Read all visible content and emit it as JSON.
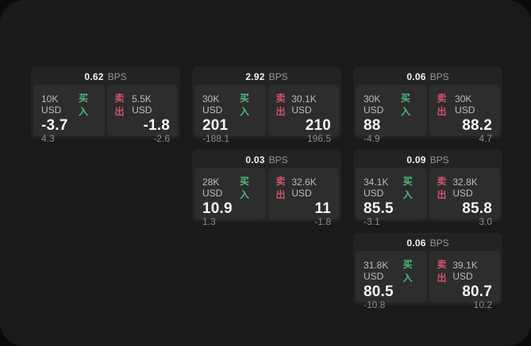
{
  "labels": {
    "bps": "BPS",
    "buy": "买入",
    "sell": "卖出"
  },
  "colors": {
    "buy": "#4bbd78",
    "sell": "#d4536a",
    "panel_bg": "#1a1a1b",
    "card_bg": "#232324",
    "tile_bg": "#2d2d2e",
    "page_bg": "#0a0a0b"
  },
  "cards": [
    {
      "col": 1,
      "row": 1,
      "spread_bps": "0.62",
      "buy": {
        "size": "10K USD",
        "price": "-3.7",
        "delta": "4.3"
      },
      "sell": {
        "size": "5.5K USD",
        "price": "-1.8",
        "delta": "-2.6"
      }
    },
    {
      "col": 2,
      "row": 1,
      "spread_bps": "2.92",
      "buy": {
        "size": "30K USD",
        "price": "201",
        "delta": "-188.1"
      },
      "sell": {
        "size": "30.1K USD",
        "price": "210",
        "delta": "196.5"
      }
    },
    {
      "col": 3,
      "row": 1,
      "spread_bps": "0.06",
      "buy": {
        "size": "30K USD",
        "price": "88",
        "delta": "-4.9"
      },
      "sell": {
        "size": "30K USD",
        "price": "88.2",
        "delta": "4.7"
      }
    },
    {
      "col": 2,
      "row": 2,
      "spread_bps": "0.03",
      "buy": {
        "size": "28K USD",
        "price": "10.9",
        "delta": "1.3"
      },
      "sell": {
        "size": "32.6K USD",
        "price": "11",
        "delta": "-1.8"
      }
    },
    {
      "col": 3,
      "row": 2,
      "spread_bps": "0.09",
      "buy": {
        "size": "34.1K USD",
        "price": "85.5",
        "delta": "-3.1"
      },
      "sell": {
        "size": "32.8K USD",
        "price": "85.8",
        "delta": "3.0"
      }
    },
    {
      "col": 3,
      "row": 3,
      "spread_bps": "0.06",
      "buy": {
        "size": "31.8K USD",
        "price": "80.5",
        "delta": "-10.8"
      },
      "sell": {
        "size": "39.1K USD",
        "price": "80.7",
        "delta": "10.2"
      }
    }
  ]
}
